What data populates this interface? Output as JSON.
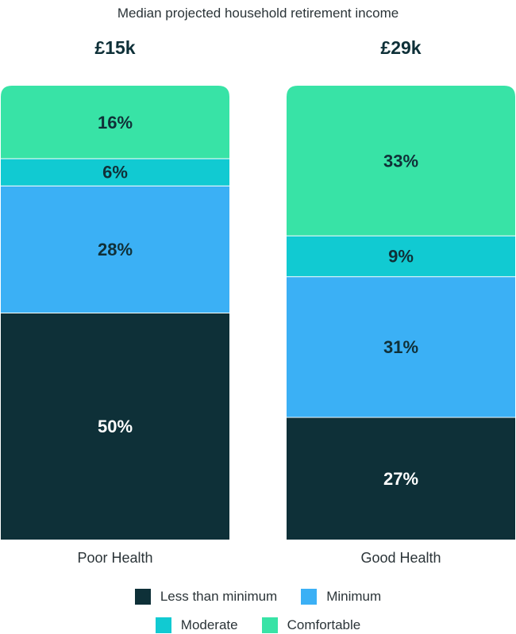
{
  "chart_data": {
    "type": "bar",
    "stacked": true,
    "title": "Median projected household retirement income",
    "categories": [
      "Poor Health",
      "Good Health"
    ],
    "category_totals": [
      "£15k",
      "£29k"
    ],
    "series": [
      {
        "name": "Less than minimum",
        "color": "#0e3038",
        "values": [
          50,
          27
        ],
        "labels": [
          "50%",
          "27%"
        ]
      },
      {
        "name": "Minimum",
        "color": "#3bb0f5",
        "values": [
          28,
          31
        ],
        "labels": [
          "28%",
          "31%"
        ]
      },
      {
        "name": "Moderate",
        "color": "#11cad2",
        "values": [
          6,
          9
        ],
        "labels": [
          "6%",
          "9%"
        ]
      },
      {
        "name": "Comfortable",
        "color": "#38e3a6",
        "values": [
          16,
          33
        ],
        "labels": [
          "16%",
          "33%"
        ]
      }
    ],
    "ylim": [
      0,
      100
    ],
    "grid": false,
    "legend_position": "bottom"
  }
}
